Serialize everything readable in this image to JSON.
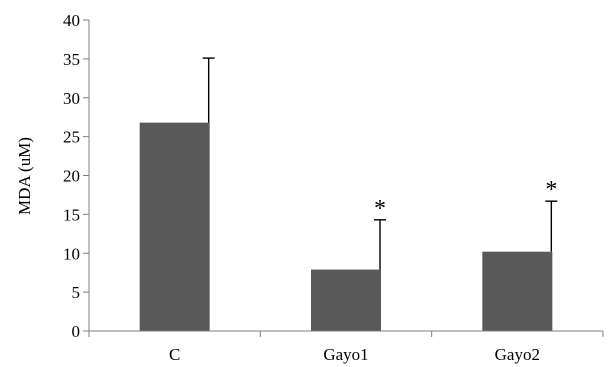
{
  "chart_data": {
    "type": "bar",
    "categories": [
      "C",
      "Gayo1",
      "Gayo2"
    ],
    "values": [
      26.8,
      7.9,
      10.2
    ],
    "errors": [
      8.3,
      6.4,
      6.5
    ],
    "significance": [
      "",
      "*",
      "*"
    ],
    "ylabel": "MDA (uM)",
    "xlabel": "",
    "ylim": [
      0,
      40
    ],
    "yticks": [
      0,
      5,
      10,
      15,
      20,
      25,
      30,
      35,
      40
    ],
    "grid": false,
    "legend": "none",
    "bar_color": "#595959"
  }
}
